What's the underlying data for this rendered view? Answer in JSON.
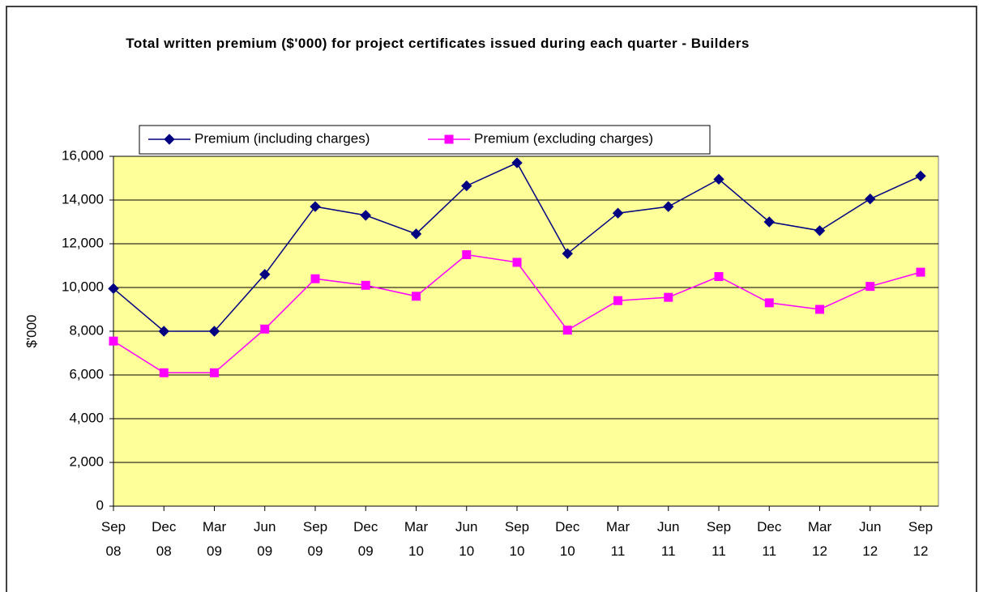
{
  "chart_data": {
    "type": "line",
    "title": "Total written premium ($'000) for project certificates issued during each quarter - Builders",
    "y_label": "$'000",
    "categories": [
      "Sep 08",
      "Dec 08",
      "Mar 09",
      "Jun 09",
      "Sep 09",
      "Dec 09",
      "Mar 10",
      "Jun 10",
      "Sep 10",
      "Dec 10",
      "Mar 11",
      "Jun 11",
      "Sep 11",
      "Dec 11",
      "Mar 12",
      "Jun 12",
      "Sep 12"
    ],
    "series": [
      {
        "name": "Premium (including charges)",
        "color": "#000080",
        "marker": "diamond",
        "values": [
          9950,
          8000,
          8000,
          10600,
          13700,
          13300,
          12450,
          14650,
          15700,
          11550,
          13400,
          13700,
          14950,
          13000,
          12600,
          14050,
          15100
        ]
      },
      {
        "name": "Premium (excluding charges)",
        "color": "#ff00ff",
        "marker": "square",
        "values": [
          7550,
          6100,
          6100,
          8100,
          10400,
          10100,
          9600,
          11500,
          11150,
          8050,
          9400,
          9550,
          10500,
          9300,
          9000,
          10050,
          10700
        ]
      }
    ],
    "ylim": [
      0,
      16000
    ],
    "yticks": [
      0,
      {
        "value": 2000,
        "label": "2,000"
      },
      {
        "value": 4000,
        "label": "4,000"
      },
      {
        "value": 6000,
        "label": "6,000"
      },
      {
        "value": 8000,
        "label": "8,000"
      },
      {
        "value": 10000,
        "label": "10,000"
      },
      {
        "value": 12000,
        "label": "12,000"
      },
      {
        "value": 14000,
        "label": "14,000"
      },
      {
        "value": 16000,
        "label": "16,000"
      }
    ],
    "grid": true,
    "plot_background": "#ffff99",
    "legend": "top"
  }
}
